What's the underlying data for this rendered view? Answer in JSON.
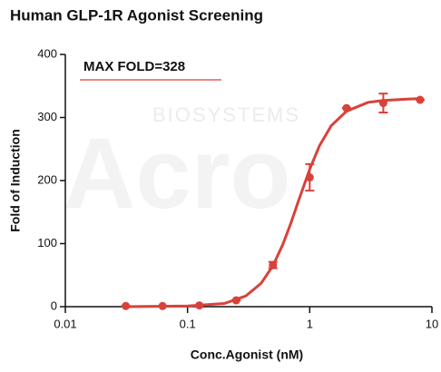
{
  "chart_data": {
    "type": "scatter",
    "title": "Human GLP-1R Agonist Screening",
    "xlabel": "Conc.Agonist (nM)",
    "ylabel": "Fold of Induction",
    "annotation": "MAX FOLD=328",
    "watermark": [
      "Acro",
      "BIOSYSTEMS"
    ],
    "log_x": true,
    "color": "#d9413b",
    "xlim": [
      0.01,
      10
    ],
    "xticks": [
      0.01,
      0.1,
      1,
      10
    ],
    "ylim": [
      0,
      400
    ],
    "yticks": [
      0,
      100,
      200,
      300,
      400
    ],
    "series": [
      {
        "x": [
          0.03125,
          0.0625,
          0.125,
          0.25,
          0.5,
          1,
          2,
          4,
          8
        ],
        "values": [
          1,
          1,
          2,
          10,
          66,
          205,
          315,
          323,
          328
        ],
        "errors": [
          0,
          0,
          0,
          0,
          5,
          21,
          0,
          15,
          0
        ]
      },
      {
        "type": "line",
        "x": [
          0.03125,
          0.1,
          0.2,
          0.3,
          0.4,
          0.5,
          0.6,
          0.7,
          0.8,
          1,
          1.2,
          1.5,
          2,
          3,
          4,
          6,
          8
        ],
        "values": [
          0,
          1,
          5,
          17,
          37,
          65,
          98,
          132,
          165,
          218,
          255,
          287,
          310,
          324,
          327,
          329,
          330
        ]
      }
    ]
  }
}
